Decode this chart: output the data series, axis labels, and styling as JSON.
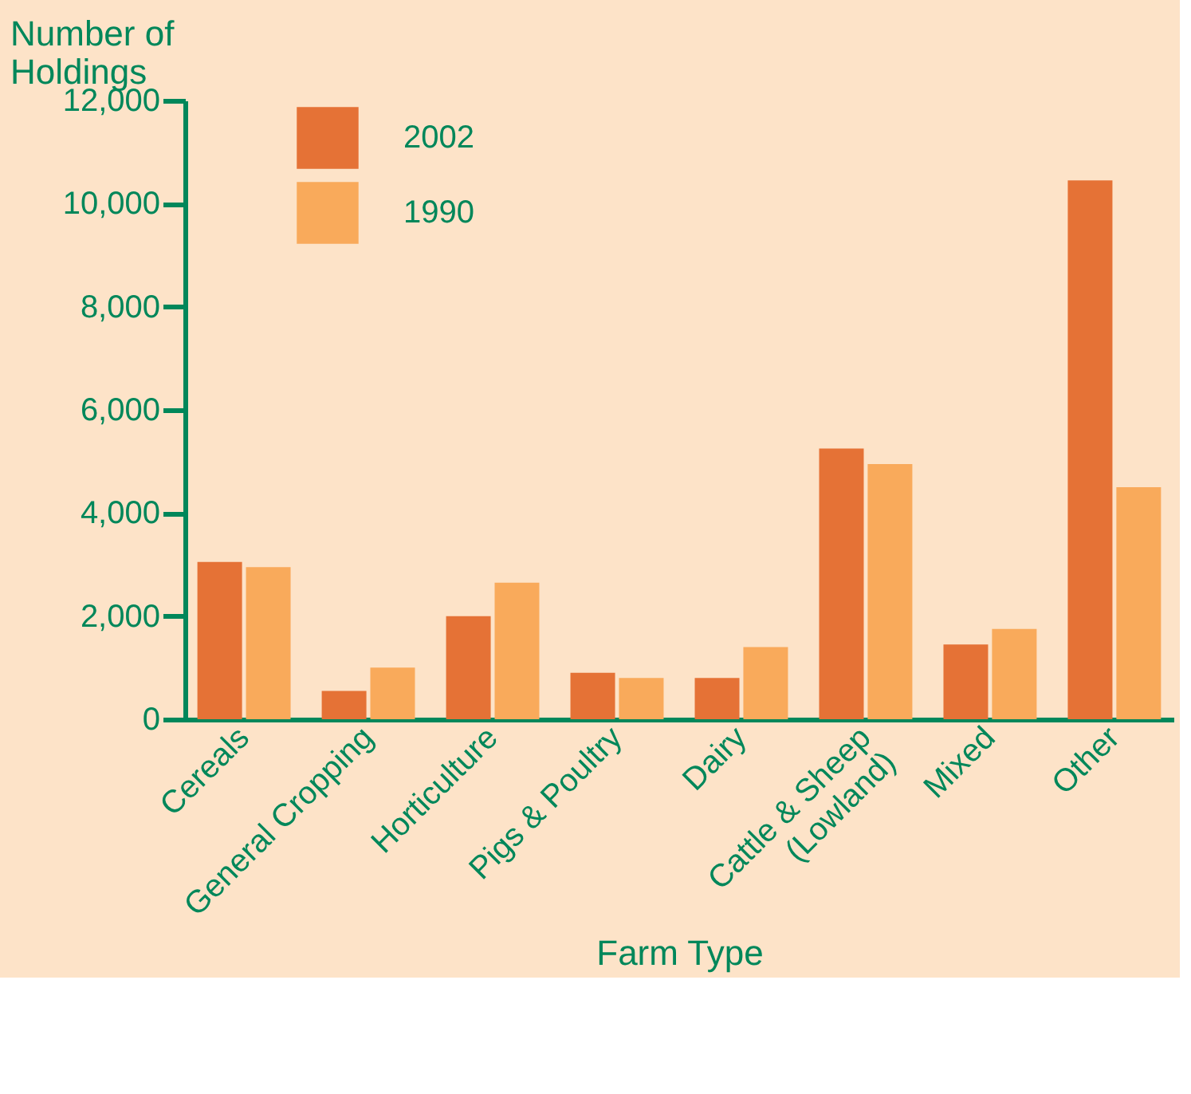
{
  "chart_data": {
    "type": "bar",
    "ylabel": "Number of\nHoldings",
    "xlabel": "Farm Type",
    "categories": [
      "Cereals",
      "General Cropping",
      "Horticulture",
      "Pigs & Poultry",
      "Dairy",
      "Cattle & Sheep\n(Lowland)",
      "Mixed",
      "Other"
    ],
    "series": [
      {
        "name": "2002",
        "color": "#e57236",
        "values": [
          3050,
          550,
          2000,
          900,
          800,
          5250,
          1450,
          10450
        ]
      },
      {
        "name": "1990",
        "color": "#f9aa5b",
        "values": [
          2950,
          1000,
          2650,
          800,
          1400,
          4950,
          1750,
          4500
        ]
      }
    ],
    "ylim": [
      0,
      12000
    ],
    "yticks": [
      0,
      {
        "value": 2000,
        "label": "2,000"
      },
      {
        "value": 4000,
        "label": "4,000"
      },
      {
        "value": 6000,
        "label": "6,000"
      },
      {
        "value": 8000,
        "label": "8,000"
      },
      {
        "value": 10000,
        "label": "10,000"
      },
      {
        "value": 12000,
        "label": "12,000"
      }
    ],
    "grid": false,
    "legend": "top left"
  }
}
